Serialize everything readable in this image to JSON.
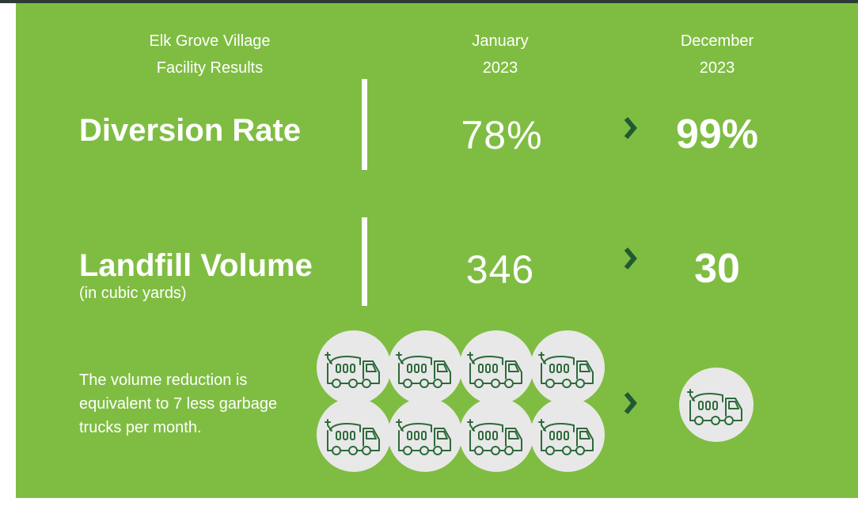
{
  "header": {
    "facility": [
      "Elk Grove Village",
      "Facility Results"
    ],
    "before": [
      "January",
      "2023"
    ],
    "after": [
      "December",
      "2023"
    ]
  },
  "rows": [
    {
      "label": "Diversion Rate",
      "before": "78%",
      "after": "99%"
    },
    {
      "label": "Landfill Volume",
      "sublabel": "(in cubic yards)",
      "before": "346",
      "after": "30"
    }
  ],
  "note": "The volume reduction is equivalent to 7 less garbage trucks per month."
}
